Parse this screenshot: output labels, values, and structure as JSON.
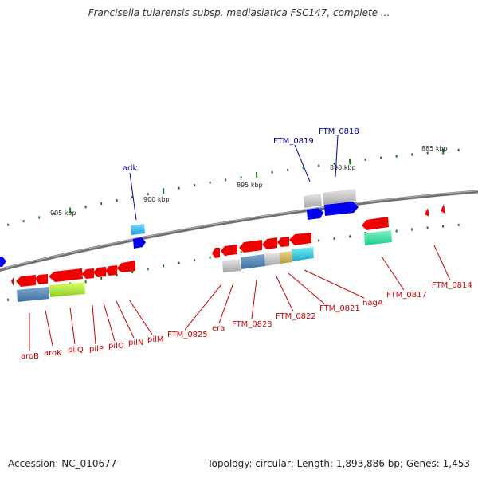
{
  "header": {
    "title": "Francisella tularensis subsp. mediasiatica FSC147, complete ..."
  },
  "footer": {
    "accession": "Accession: NC_010677",
    "summary": "Topology: circular; Length: 1,893,886 bp; Genes: 1,453"
  },
  "scale_labels": [
    "885 kbp",
    "890 kbp",
    "895 kbp",
    "900 kbp",
    "905 kbp"
  ],
  "gene_labels_top": [
    "adk",
    "FTM_0819",
    "FTM_0818"
  ],
  "gene_labels_bottom": [
    "aroB",
    "aroK",
    "pilQ",
    "pilP",
    "pilO",
    "pilN",
    "pilM",
    "FTM_0825",
    "era",
    "FTM_0823",
    "FTM_0822",
    "FTM_0821",
    "nagA",
    "FTM_0817",
    "FTM_0814"
  ],
  "colors": {
    "forward_gene": "#0000ee",
    "reverse_gene": "#ee0000",
    "backbone": "#7a7a7a",
    "tick": "#1a7a1a",
    "label_red": "#cc0000",
    "label_blue": "#00009c"
  }
}
